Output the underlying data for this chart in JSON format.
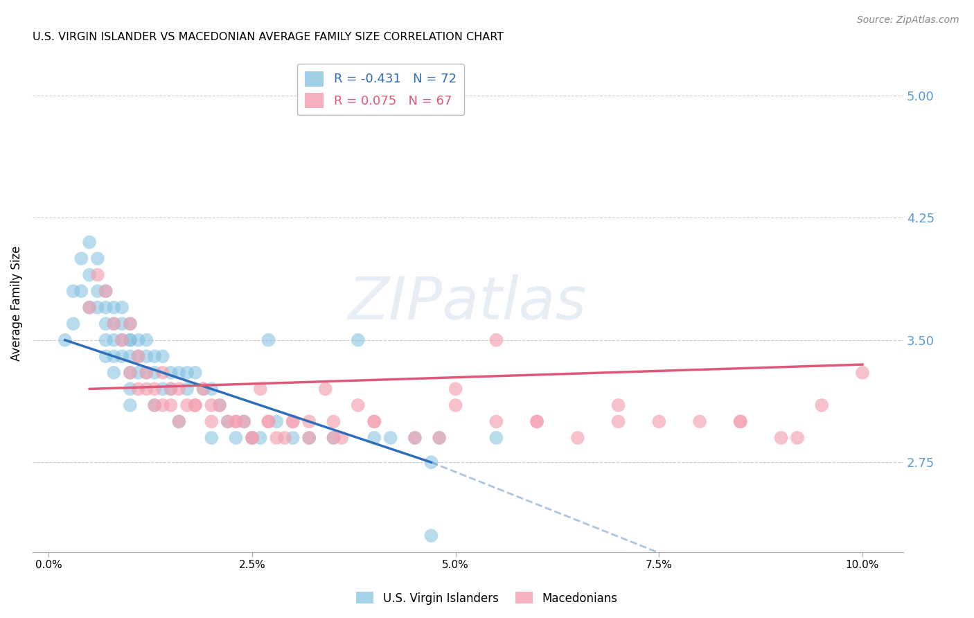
{
  "title": "U.S. VIRGIN ISLANDER VS MACEDONIAN AVERAGE FAMILY SIZE CORRELATION CHART",
  "source": "Source: ZipAtlas.com",
  "ylabel": "Average Family Size",
  "xlabel_ticks": [
    "0.0%",
    "2.5%",
    "5.0%",
    "7.5%",
    "10.0%"
  ],
  "xlabel_vals": [
    0.0,
    2.5,
    5.0,
    7.5,
    10.0
  ],
  "ylim": [
    2.2,
    5.25
  ],
  "xlim": [
    -0.2,
    10.5
  ],
  "yticks": [
    2.75,
    3.5,
    4.25,
    5.0
  ],
  "ytick_labels": [
    "2.75",
    "3.50",
    "4.25",
    "5.00"
  ],
  "right_yaxis_color": "#5b9bd5",
  "legend_R_blue": "-0.431",
  "legend_N_blue": "72",
  "legend_R_pink": "0.075",
  "legend_N_pink": "67",
  "blue_color": "#7fbfdf",
  "pink_color": "#f4a0b0",
  "blue_line_color": "#2f6fba",
  "pink_line_color": "#e05878",
  "watermark_text": "ZIPatlas",
  "background_color": "#ffffff",
  "grid_color": "#cccccc",
  "blue_scatter_x": [
    0.2,
    0.3,
    0.3,
    0.4,
    0.4,
    0.5,
    0.5,
    0.5,
    0.6,
    0.6,
    0.6,
    0.7,
    0.7,
    0.7,
    0.7,
    0.7,
    0.8,
    0.8,
    0.8,
    0.8,
    0.8,
    0.9,
    0.9,
    0.9,
    0.9,
    1.0,
    1.0,
    1.0,
    1.0,
    1.0,
    1.0,
    1.0,
    1.1,
    1.1,
    1.1,
    1.2,
    1.2,
    1.2,
    1.3,
    1.3,
    1.3,
    1.4,
    1.4,
    1.5,
    1.5,
    1.6,
    1.6,
    1.7,
    1.7,
    1.8,
    1.9,
    2.0,
    2.0,
    2.1,
    2.2,
    2.3,
    2.4,
    2.5,
    2.6,
    2.7,
    2.8,
    3.0,
    3.2,
    3.5,
    3.8,
    4.0,
    4.2,
    4.5,
    4.8,
    5.5,
    4.7,
    4.7
  ],
  "blue_scatter_y": [
    3.5,
    3.8,
    3.6,
    4.0,
    3.8,
    4.1,
    3.9,
    3.7,
    4.0,
    3.8,
    3.7,
    3.8,
    3.7,
    3.6,
    3.5,
    3.4,
    3.7,
    3.6,
    3.5,
    3.4,
    3.3,
    3.7,
    3.6,
    3.5,
    3.4,
    3.6,
    3.5,
    3.5,
    3.4,
    3.3,
    3.2,
    3.1,
    3.5,
    3.4,
    3.3,
    3.5,
    3.4,
    3.3,
    3.4,
    3.3,
    3.1,
    3.4,
    3.2,
    3.3,
    3.2,
    3.3,
    3.0,
    3.3,
    3.2,
    3.3,
    3.2,
    3.2,
    2.9,
    3.1,
    3.0,
    2.9,
    3.0,
    2.9,
    2.9,
    3.5,
    3.0,
    2.9,
    2.9,
    2.9,
    3.5,
    2.9,
    2.9,
    2.9,
    2.9,
    2.9,
    2.75,
    2.3
  ],
  "pink_scatter_x": [
    0.5,
    0.6,
    0.7,
    0.8,
    0.9,
    1.0,
    1.0,
    1.1,
    1.1,
    1.2,
    1.2,
    1.3,
    1.4,
    1.4,
    1.5,
    1.5,
    1.6,
    1.7,
    1.8,
    1.9,
    2.0,
    2.1,
    2.2,
    2.3,
    2.4,
    2.5,
    2.6,
    2.7,
    2.8,
    2.9,
    3.0,
    3.2,
    3.4,
    3.5,
    3.6,
    3.8,
    4.0,
    4.5,
    5.0,
    5.5,
    6.0,
    6.5,
    7.0,
    7.5,
    8.0,
    8.5,
    9.0,
    9.5,
    10.0,
    1.6,
    2.0,
    2.3,
    2.5,
    3.0,
    3.5,
    4.0,
    5.0,
    6.0,
    7.0,
    8.5,
    9.2,
    1.3,
    1.8,
    2.7,
    3.2,
    4.8,
    5.5
  ],
  "pink_scatter_y": [
    3.7,
    3.9,
    3.8,
    3.6,
    3.5,
    3.3,
    3.6,
    3.4,
    3.2,
    3.3,
    3.2,
    3.2,
    3.3,
    3.1,
    3.2,
    3.1,
    3.2,
    3.1,
    3.1,
    3.2,
    3.1,
    3.1,
    3.0,
    3.0,
    3.0,
    2.9,
    3.2,
    3.0,
    2.9,
    2.9,
    3.0,
    2.9,
    3.2,
    3.0,
    2.9,
    3.1,
    3.0,
    2.9,
    3.1,
    3.0,
    3.0,
    2.9,
    3.1,
    3.0,
    3.0,
    3.0,
    2.9,
    3.1,
    3.3,
    3.0,
    3.0,
    3.0,
    2.9,
    3.0,
    2.9,
    3.0,
    3.2,
    3.0,
    3.0,
    3.0,
    2.9,
    3.1,
    3.1,
    3.0,
    3.0,
    2.9,
    3.5
  ],
  "blue_solid_x_end": 4.7,
  "blue_solid_start_y": 3.5,
  "blue_solid_end_y": 2.75,
  "blue_dashed_x_end": 10.5,
  "blue_dashed_end_y": 1.6,
  "pink_start_x": 0.5,
  "pink_start_y": 3.2,
  "pink_end_x": 10.0,
  "pink_end_y": 3.35
}
